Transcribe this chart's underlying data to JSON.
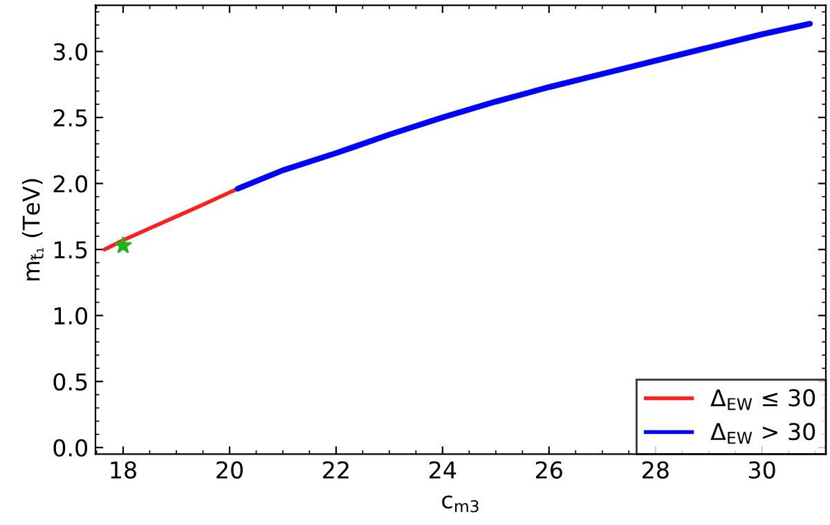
{
  "chart_data": {
    "type": "line",
    "xlabel": "c$_{m3}$",
    "ylabel": "m$_{t̃₁}$ (TeV)",
    "xlim": [
      17.48,
      31.2
    ],
    "ylim": [
      -0.05,
      3.35
    ],
    "xticks": [
      18,
      20,
      22,
      24,
      26,
      28,
      30
    ],
    "yticks": [
      {
        "value": 0,
        "label": "0.0"
      },
      {
        "value": 0.5,
        "label": "0.5"
      },
      {
        "value": 1,
        "label": "1.0"
      },
      {
        "value": 1.5,
        "label": "1.5"
      },
      {
        "value": 2,
        "label": "2.0"
      },
      {
        "value": 2.5,
        "label": "2.5"
      },
      {
        "value": 3,
        "label": "3.0"
      }
    ],
    "grid": false,
    "legend": "bottom right",
    "marker": "none",
    "line_style": "solid",
    "series": [
      {
        "name": "Δ$_{EW}$ ≤ 30",
        "color": "#ff2020",
        "x": [
          17.65,
          18,
          18.5,
          19,
          19.5,
          20.15
        ],
        "values": [
          1.5,
          1.57,
          1.66,
          1.75,
          1.84,
          1.96
        ]
      },
      {
        "name": "Δ$_{EW}$ > 30",
        "color": "#0000ff",
        "x": [
          20.15,
          21,
          22,
          23,
          24,
          25,
          26,
          27,
          28,
          29,
          30,
          30.9
        ],
        "values": [
          1.96,
          2.1,
          2.23,
          2.37,
          2.5,
          2.62,
          2.73,
          2.83,
          2.93,
          3.03,
          3.13,
          3.21
        ]
      },
      {
        "type": "scatter",
        "marker": "star",
        "color": "#20b020",
        "x": [
          18
        ],
        "values": [
          1.53
        ]
      }
    ]
  }
}
